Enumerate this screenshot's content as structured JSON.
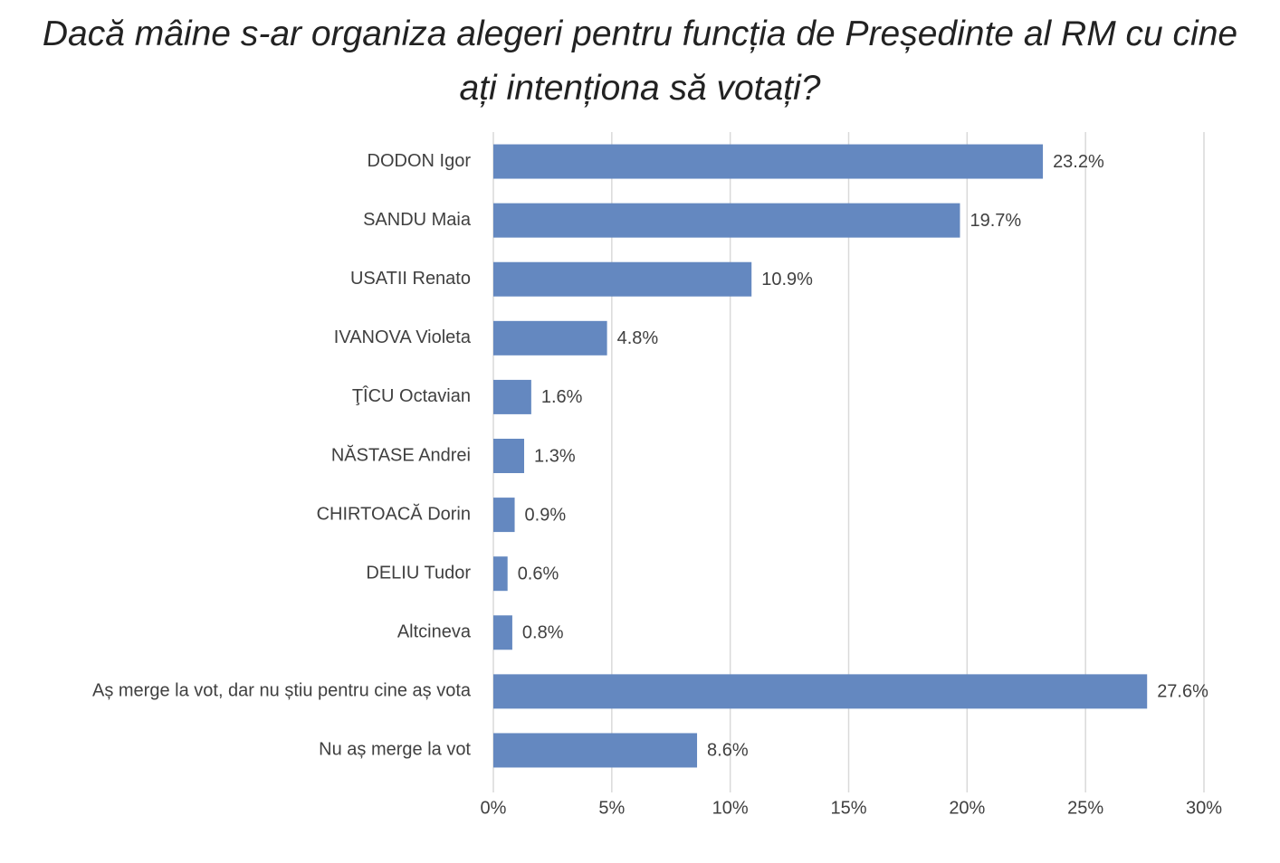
{
  "chart_data": {
    "type": "barh",
    "title": "Dacă mâine s-ar organiza alegeri pentru funcția de Președinte al RM cu cine ați intenționa să votați?",
    "categories": [
      "DODON Igor",
      "SANDU Maia",
      "USATII Renato",
      "IVANOVA Violeta",
      "ŢÎCU Octavian",
      "NĂSTASE Andrei",
      "CHIRTOACĂ Dorin",
      "DELIU Tudor",
      "Altcineva",
      "Aș merge la vot, dar nu știu pentru cine aș vota",
      "Nu aș merge la vot"
    ],
    "values": [
      23.2,
      19.7,
      10.9,
      4.8,
      1.6,
      1.3,
      0.9,
      0.6,
      0.8,
      27.6,
      8.6
    ],
    "value_labels": [
      "23.2%",
      "19.7%",
      "10.9%",
      "4.8%",
      "1.6%",
      "1.3%",
      "0.9%",
      "0.6%",
      "0.8%",
      "27.6%",
      "8.6%"
    ],
    "color": "#6488c0",
    "xlim": [
      0,
      30
    ],
    "xticks": [
      {
        "value": 0,
        "label": "0%"
      },
      {
        "value": 5,
        "label": "5%"
      },
      {
        "value": 10,
        "label": "10%"
      },
      {
        "value": 15,
        "label": "15%"
      },
      {
        "value": 20,
        "label": "20%"
      },
      {
        "value": 25,
        "label": "25%"
      },
      {
        "value": 30,
        "label": "30%"
      }
    ],
    "grid": true
  }
}
